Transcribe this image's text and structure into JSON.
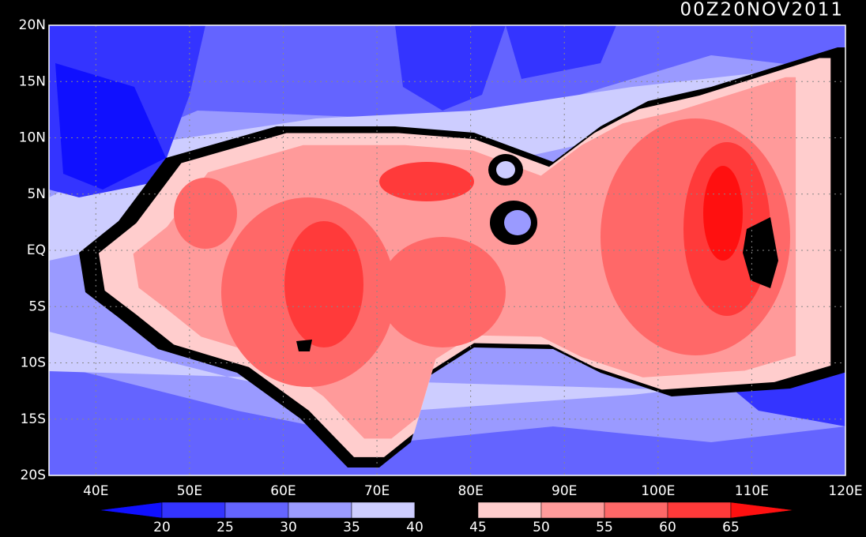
{
  "title": "00Z20NOV2011",
  "map": {
    "xlim": [
      35,
      120
    ],
    "ylim": [
      -20,
      20
    ],
    "xticks": [
      {
        "value": 40,
        "label": "40E"
      },
      {
        "value": 50,
        "label": "50E"
      },
      {
        "value": 60,
        "label": "60E"
      },
      {
        "value": 70,
        "label": "70E"
      },
      {
        "value": 80,
        "label": "80E"
      },
      {
        "value": 90,
        "label": "90E"
      },
      {
        "value": 100,
        "label": "100E"
      },
      {
        "value": 110,
        "label": "110E"
      },
      {
        "value": 120,
        "label": "120E"
      }
    ],
    "yticks": [
      {
        "value": 20,
        "label": "20N"
      },
      {
        "value": 15,
        "label": "15N"
      },
      {
        "value": 10,
        "label": "10N"
      },
      {
        "value": 5,
        "label": "5N"
      },
      {
        "value": 0,
        "label": "EQ"
      },
      {
        "value": -5,
        "label": "5S"
      },
      {
        "value": -10,
        "label": "10S"
      },
      {
        "value": -15,
        "label": "15S"
      },
      {
        "value": -20,
        "label": "20S"
      }
    ],
    "grid": true
  },
  "colorbar": {
    "levels": [
      20,
      25,
      30,
      35,
      40,
      45,
      50,
      55,
      60,
      65
    ],
    "colors": [
      "#1010ff",
      "#3434ff",
      "#6464ff",
      "#9a9aff",
      "#cdcdff",
      "#000000",
      "#ffcdcd",
      "#ff9a9a",
      "#ff6868",
      "#ff3a3a",
      "#ff1010"
    ]
  }
}
